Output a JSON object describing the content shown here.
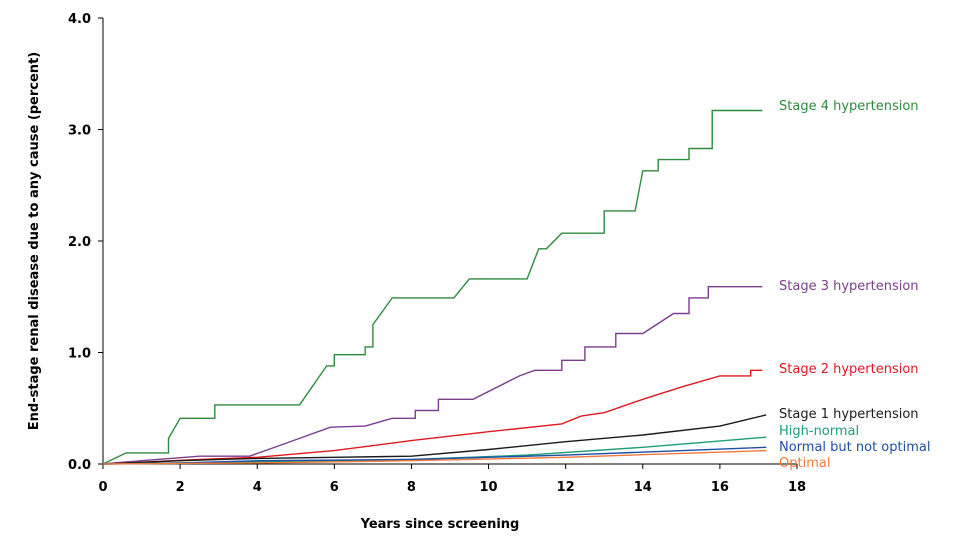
{
  "chart_data": {
    "type": "line",
    "title": "",
    "xlabel": "Years since screening",
    "ylabel": "End-stage renal disease due to any cause (percent)",
    "xlim": [
      0,
      18
    ],
    "ylim": [
      0,
      4.0
    ],
    "x_ticks": [
      "0",
      "2",
      "4",
      "6",
      "8",
      "10",
      "12",
      "14",
      "16",
      "18"
    ],
    "y_ticks": [
      "0.0",
      "1.0",
      "2.0",
      "3.0",
      "4.0"
    ],
    "grid": false,
    "legend": "direct labels at line ends (right)",
    "series": [
      {
        "name": "Stage 4 hypertension",
        "color": "#2e8b3e",
        "step": true,
        "points": [
          [
            0,
            0
          ],
          [
            0.6,
            0.1
          ],
          [
            1.7,
            0.1
          ],
          [
            1.7,
            0.23
          ],
          [
            2.0,
            0.41
          ],
          [
            2.9,
            0.41
          ],
          [
            2.9,
            0.53
          ],
          [
            5.1,
            0.53
          ],
          [
            5.8,
            0.88
          ],
          [
            6.0,
            0.88
          ],
          [
            6.0,
            0.98
          ],
          [
            6.8,
            0.98
          ],
          [
            6.8,
            1.05
          ],
          [
            7.0,
            1.05
          ],
          [
            7.0,
            1.25
          ],
          [
            7.5,
            1.49
          ],
          [
            9.1,
            1.49
          ],
          [
            9.5,
            1.66
          ],
          [
            11.0,
            1.66
          ],
          [
            11.3,
            1.93
          ],
          [
            11.5,
            1.93
          ],
          [
            11.9,
            2.07
          ],
          [
            13.0,
            2.07
          ],
          [
            13.0,
            2.27
          ],
          [
            13.8,
            2.27
          ],
          [
            14.0,
            2.63
          ],
          [
            14.4,
            2.63
          ],
          [
            14.4,
            2.73
          ],
          [
            15.2,
            2.73
          ],
          [
            15.2,
            2.83
          ],
          [
            15.8,
            2.83
          ],
          [
            15.8,
            3.17
          ],
          [
            17.1,
            3.17
          ]
        ]
      },
      {
        "name": "Stage 3 hypertension",
        "color": "#7b3f8c",
        "step": true,
        "points": [
          [
            0,
            0
          ],
          [
            1.0,
            0.03
          ],
          [
            2.5,
            0.07
          ],
          [
            3.8,
            0.07
          ],
          [
            4.7,
            0.18
          ],
          [
            5.9,
            0.33
          ],
          [
            6.8,
            0.34
          ],
          [
            7.5,
            0.41
          ],
          [
            8.1,
            0.41
          ],
          [
            8.1,
            0.48
          ],
          [
            8.7,
            0.48
          ],
          [
            8.7,
            0.58
          ],
          [
            9.6,
            0.58
          ],
          [
            10.8,
            0.79
          ],
          [
            11.2,
            0.84
          ],
          [
            11.9,
            0.84
          ],
          [
            11.9,
            0.93
          ],
          [
            12.5,
            0.93
          ],
          [
            12.5,
            1.05
          ],
          [
            13.3,
            1.05
          ],
          [
            13.3,
            1.17
          ],
          [
            14.0,
            1.17
          ],
          [
            14.8,
            1.35
          ],
          [
            15.2,
            1.35
          ],
          [
            15.2,
            1.49
          ],
          [
            15.7,
            1.49
          ],
          [
            15.7,
            1.59
          ],
          [
            17.1,
            1.59
          ]
        ]
      },
      {
        "name": "Stage 2 hypertension",
        "color": "#e0191f",
        "step": true,
        "points": [
          [
            0,
            0
          ],
          [
            2.5,
            0.04
          ],
          [
            4.0,
            0.06
          ],
          [
            6.0,
            0.12
          ],
          [
            8.0,
            0.21
          ],
          [
            10.0,
            0.29
          ],
          [
            11.9,
            0.36
          ],
          [
            12.4,
            0.43
          ],
          [
            13.0,
            0.46
          ],
          [
            14.0,
            0.58
          ],
          [
            15.0,
            0.69
          ],
          [
            16.0,
            0.79
          ],
          [
            16.8,
            0.79
          ],
          [
            16.8,
            0.84
          ],
          [
            17.1,
            0.84
          ]
        ]
      },
      {
        "name": "Stage 1 hypertension",
        "color": "#1a1a1a",
        "step": false,
        "points": [
          [
            0,
            0
          ],
          [
            2,
            0.03
          ],
          [
            4,
            0.05
          ],
          [
            6,
            0.06
          ],
          [
            8,
            0.07
          ],
          [
            10,
            0.13
          ],
          [
            12,
            0.2
          ],
          [
            14,
            0.26
          ],
          [
            16,
            0.34
          ],
          [
            17.2,
            0.44
          ]
        ]
      },
      {
        "name": "High-normal",
        "color": "#1e9e77",
        "step": false,
        "points": [
          [
            0,
            0
          ],
          [
            4,
            0.02
          ],
          [
            8,
            0.04
          ],
          [
            11,
            0.08
          ],
          [
            14,
            0.15
          ],
          [
            17.2,
            0.24
          ]
        ]
      },
      {
        "name": "Normal but not optimal",
        "color": "#1f4fa5",
        "step": false,
        "points": [
          [
            0,
            0
          ],
          [
            2,
            0.01
          ],
          [
            4,
            0.03
          ],
          [
            8,
            0.04
          ],
          [
            12,
            0.08
          ],
          [
            17.2,
            0.15
          ]
        ]
      },
      {
        "name": "Optimal",
        "color": "#f07a3c",
        "step": false,
        "points": [
          [
            0,
            0
          ],
          [
            4,
            0.01
          ],
          [
            8,
            0.03
          ],
          [
            12,
            0.06
          ],
          [
            17.2,
            0.12
          ]
        ]
      }
    ]
  }
}
